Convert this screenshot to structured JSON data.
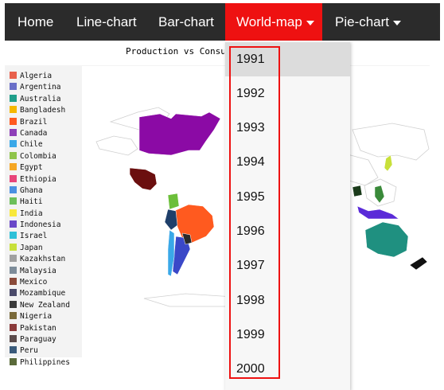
{
  "nav": {
    "items": [
      {
        "label": "Home"
      },
      {
        "label": "Line-chart"
      },
      {
        "label": "Bar-chart"
      },
      {
        "label": "World-map",
        "active": true
      },
      {
        "label": "Pie-chart"
      }
    ]
  },
  "chart": {
    "title": "Production vs Consumption"
  },
  "legend": [
    {
      "label": "Algeria",
      "color": "#e8604c"
    },
    {
      "label": "Argentina",
      "color": "#6a6fc8"
    },
    {
      "label": "Australia",
      "color": "#1f9e8a"
    },
    {
      "label": "Bangladesh",
      "color": "#f5b800"
    },
    {
      "label": "Brazil",
      "color": "#ff5a1f"
    },
    {
      "label": "Canada",
      "color": "#8e3fb8"
    },
    {
      "label": "Chile",
      "color": "#3aa8e8"
    },
    {
      "label": "Colombia",
      "color": "#8fc44a"
    },
    {
      "label": "Egypt",
      "color": "#f5a623"
    },
    {
      "label": "Ethiopia",
      "color": "#e8447a"
    },
    {
      "label": "Ghana",
      "color": "#4a90e2"
    },
    {
      "label": "Haiti",
      "color": "#6cbf5a"
    },
    {
      "label": "India",
      "color": "#f8e83a"
    },
    {
      "label": "Indonesia",
      "color": "#6a48c8"
    },
    {
      "label": "Israel",
      "color": "#2ec0d8"
    },
    {
      "label": "Japan",
      "color": "#c8e03a"
    },
    {
      "label": "Kazakhstan",
      "color": "#a0a0a0"
    },
    {
      "label": "Malaysia",
      "color": "#7d8c99"
    },
    {
      "label": "Mexico",
      "color": "#8a4a3a"
    },
    {
      "label": "Mozambique",
      "color": "#4a4a6a"
    },
    {
      "label": "New Zealand",
      "color": "#3a3a3a"
    },
    {
      "label": "Nigeria",
      "color": "#7a6a3a"
    },
    {
      "label": "Pakistan",
      "color": "#8a3a3a"
    },
    {
      "label": "Paraguay",
      "color": "#5a4a4a"
    },
    {
      "label": "Peru",
      "color": "#3a5a7a"
    },
    {
      "label": "Philippines",
      "color": "#5a6a3a"
    }
  ],
  "map": {
    "colors": {
      "usa": "#8b0aa5",
      "mexico": "#6b0f0f",
      "colombia": "#6cbf3a",
      "brazil": "#ff5a1f",
      "peru": "#1f3f6a",
      "argentina": "#3a48c8",
      "chile": "#3aa8e8",
      "paraguay": "#2a2a2a",
      "australia": "#1f9080",
      "indonesia": "#5a2ad8",
      "philippines": "#3a8a3a",
      "japan": "#c8e03a",
      "china_se": "#1a3a1a",
      "new_zealand": "#111111"
    }
  },
  "dropdown": {
    "items": [
      "1991",
      "1992",
      "1993",
      "1994",
      "1995",
      "1996",
      "1997",
      "1998",
      "1999",
      "2000"
    ],
    "hovered": "1991"
  }
}
